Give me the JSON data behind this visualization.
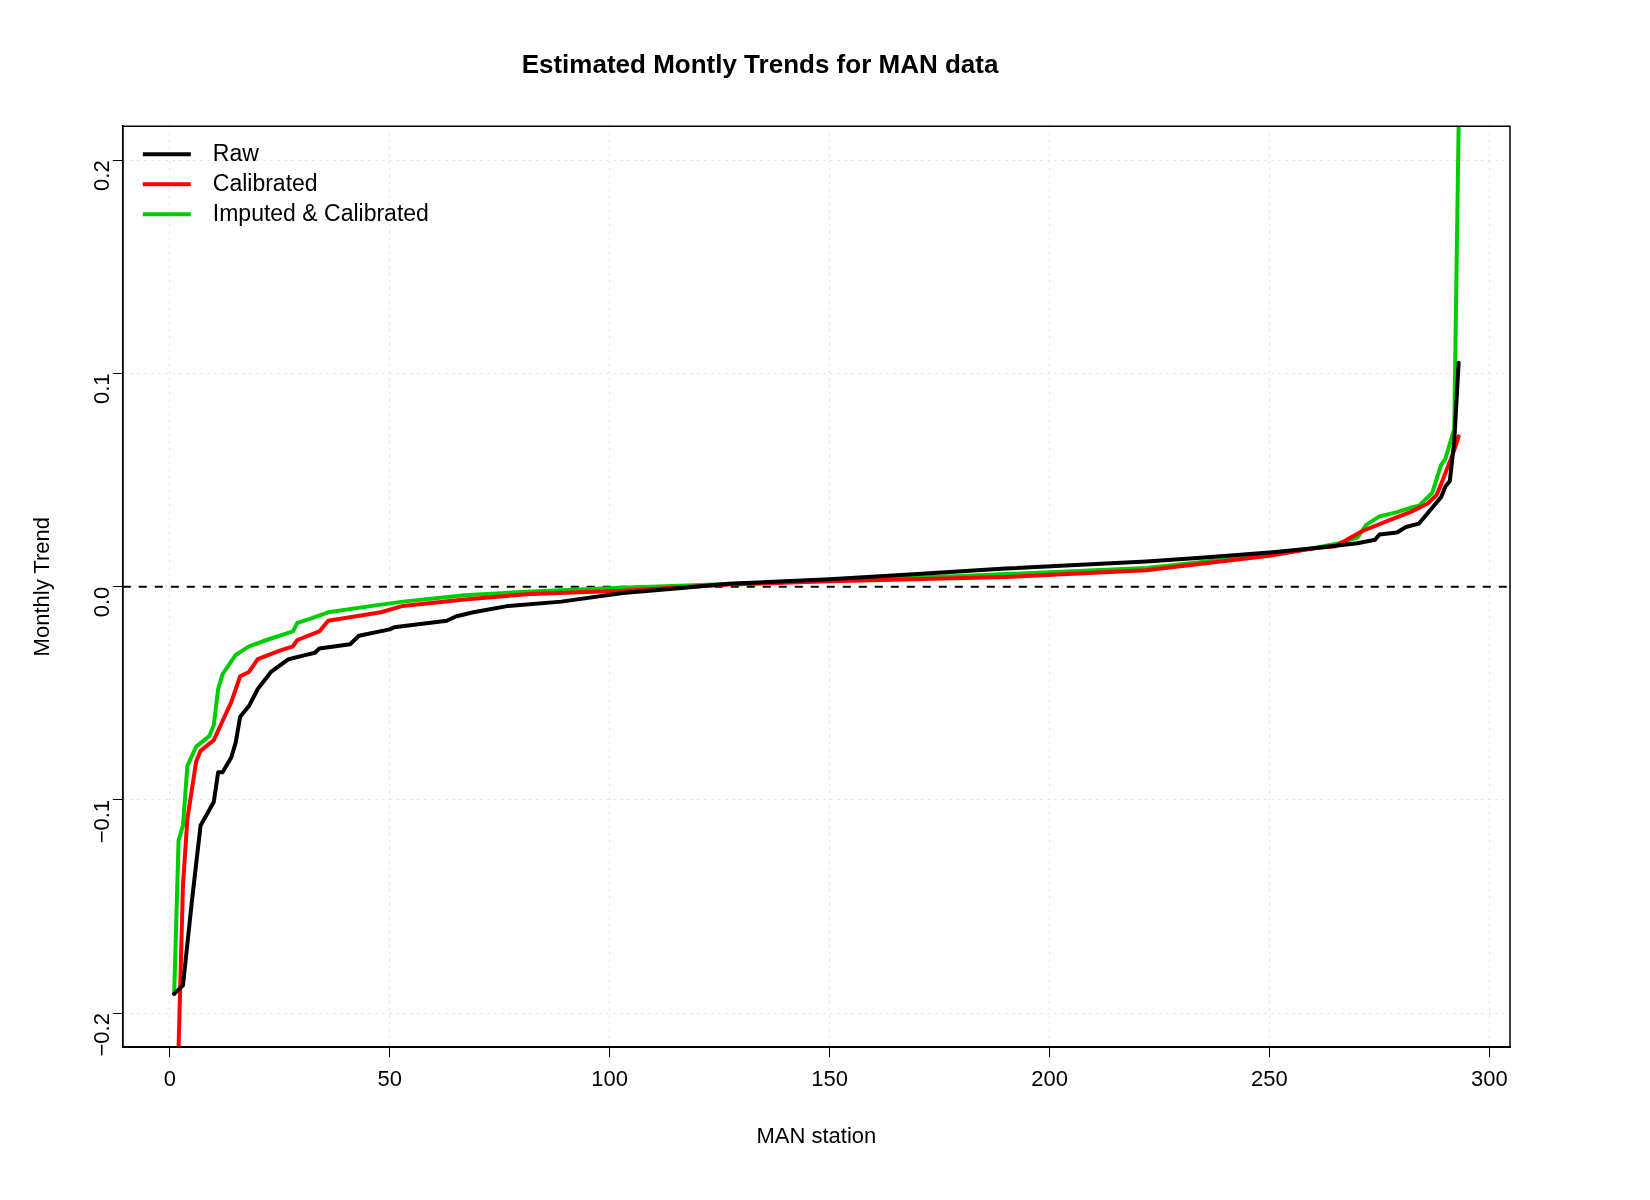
{
  "chart_data": {
    "type": "line",
    "title": "Estimated Montly Trends for MAN data",
    "xlabel": "MAN station",
    "ylabel": "Monthly Trend",
    "xlim": [
      -10.68,
      304.68
    ],
    "ylim": [
      -0.216,
      0.216
    ],
    "xticks": [
      0,
      50,
      100,
      150,
      200,
      250,
      300
    ],
    "yticks": [
      {
        "value": -0.2,
        "label": "−0.2"
      },
      {
        "value": -0.1,
        "label": "−0.1"
      },
      {
        "value": 0,
        "label": "0.0"
      },
      {
        "value": 0.1,
        "label": "0.1"
      },
      {
        "value": 0.2,
        "label": "0.2"
      }
    ],
    "grid": true,
    "legend": "top left",
    "marker": "none",
    "line_style": "solid",
    "ref_lines": [
      {
        "axis": "y",
        "value": 0,
        "line_style": "dashed",
        "color": "#000000"
      }
    ],
    "series": [
      {
        "name": "Raw",
        "color": "#000000",
        "x": [
          1,
          3,
          5,
          7,
          10,
          11,
          12,
          14,
          15,
          16,
          18,
          20,
          23,
          27,
          31,
          33,
          34,
          41,
          43,
          50,
          51,
          63,
          65,
          69,
          77,
          89,
          103,
          117,
          127,
          150,
          170,
          190,
          222,
          236,
          250,
          260,
          270,
          274,
          275,
          279,
          281,
          284,
          289,
          290,
          291,
          292,
          293
        ],
        "values": [
          -0.191,
          -0.187,
          -0.148,
          -0.112,
          -0.101,
          -0.087,
          -0.087,
          -0.08,
          -0.073,
          -0.061,
          -0.056,
          -0.048,
          -0.04,
          -0.034,
          -0.032,
          -0.031,
          -0.029,
          -0.027,
          -0.023,
          -0.02,
          -0.019,
          -0.016,
          -0.014,
          -0.012,
          -0.009,
          -0.007,
          -0.003,
          -0.0005,
          0.0014,
          0.0035,
          0.006,
          0.0085,
          0.0118,
          0.0138,
          0.016,
          0.018,
          0.0204,
          0.022,
          0.0245,
          0.0254,
          0.028,
          0.0296,
          0.042,
          0.047,
          0.0496,
          0.068,
          0.105
        ]
      },
      {
        "name": "Calibrated",
        "color": "#ff0000",
        "x": [
          2,
          3,
          4,
          6,
          7,
          10,
          12,
          14,
          16,
          18,
          20,
          25,
          28,
          29,
          34,
          36,
          42,
          48,
          53,
          67,
          82,
          103,
          127,
          150,
          190,
          222,
          250,
          260,
          265,
          271,
          277,
          282,
          286,
          288,
          289,
          292,
          293
        ],
        "values": [
          -0.216,
          -0.14,
          -0.109,
          -0.082,
          -0.077,
          -0.072,
          -0.063,
          -0.054,
          -0.042,
          -0.04,
          -0.034,
          -0.03,
          -0.028,
          -0.025,
          -0.021,
          -0.016,
          -0.014,
          -0.012,
          -0.009,
          -0.006,
          -0.0034,
          -0.0019,
          0.001,
          0.0025,
          0.0045,
          0.0077,
          0.0145,
          0.018,
          0.019,
          0.026,
          0.031,
          0.035,
          0.039,
          0.043,
          0.048,
          0.064,
          0.0705
        ]
      },
      {
        "name": "Imputed & Calibrated",
        "color": "#00cd00",
        "x": [
          1,
          2,
          3,
          4,
          6,
          9,
          10,
          11,
          12,
          15,
          18,
          22,
          28,
          29,
          32,
          36,
          46,
          53,
          67,
          82,
          103,
          150,
          180,
          222,
          250,
          260,
          265,
          270,
          272,
          275,
          279,
          282,
          284,
          287,
          289,
          290,
          292,
          293
        ],
        "values": [
          -0.191,
          -0.119,
          -0.112,
          -0.084,
          -0.075,
          -0.07,
          -0.065,
          -0.048,
          -0.041,
          -0.032,
          -0.028,
          -0.025,
          -0.021,
          -0.017,
          -0.015,
          -0.012,
          -0.009,
          -0.007,
          -0.004,
          -0.0023,
          -0.0005,
          0.003,
          0.005,
          0.0088,
          0.015,
          0.018,
          0.02,
          0.023,
          0.029,
          0.033,
          0.035,
          0.037,
          0.038,
          0.044,
          0.057,
          0.06,
          0.074,
          0.216
        ]
      }
    ]
  }
}
